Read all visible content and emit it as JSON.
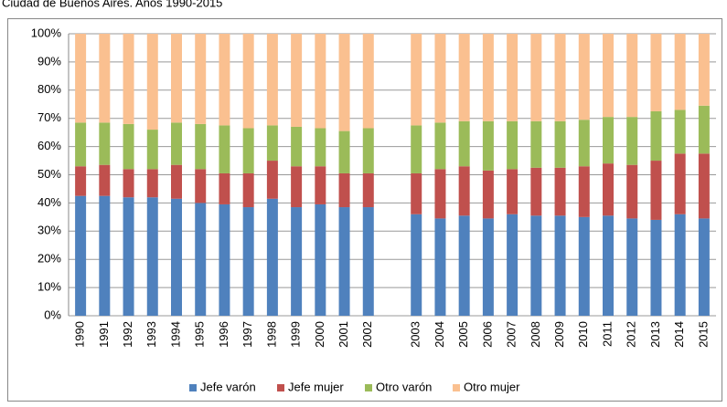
{
  "chart_data": {
    "type": "stacked-bar",
    "title": "Ciudad de Buenos Aires. Años 1990-2015",
    "categories": [
      "1990",
      "1991",
      "1992",
      "1993",
      "1994",
      "1995",
      "1996",
      "1997",
      "1998",
      "1999",
      "2000",
      "2001",
      "2002",
      null,
      "2003",
      "2004",
      "2005",
      "2006",
      "2007",
      "2008",
      "2009",
      "2010",
      "2011",
      "2012",
      "2013",
      "2014",
      "2015"
    ],
    "series": [
      {
        "name": "Jefe varón",
        "color": "#4f81bd",
        "values": [
          42.5,
          42.5,
          42,
          42,
          41.5,
          40,
          39.5,
          38.5,
          41.5,
          38.5,
          39.5,
          38.5,
          38.5,
          null,
          36,
          34.5,
          35.5,
          34.5,
          36,
          35.5,
          35.5,
          35,
          35.5,
          34.5,
          34,
          36,
          34.5
        ]
      },
      {
        "name": "Jefe mujer",
        "color": "#c0504d",
        "values": [
          10.5,
          11,
          10,
          10,
          12,
          12,
          11,
          12,
          13.5,
          14.5,
          13.5,
          12,
          12,
          null,
          14.5,
          17.5,
          17.5,
          17,
          16,
          17,
          17,
          18,
          18.5,
          19,
          21,
          21.5,
          23
        ]
      },
      {
        "name": "Otro varón",
        "color": "#9bbb59",
        "values": [
          15.5,
          15,
          16,
          14,
          15,
          16,
          17,
          16,
          12.5,
          14,
          13.5,
          15,
          16,
          null,
          17,
          16.5,
          16,
          17.5,
          17,
          16.5,
          16.5,
          16.5,
          16.5,
          17,
          17.5,
          15.5,
          17
        ]
      },
      {
        "name": "Otro mujer",
        "color": "#fac090",
        "values": [
          31.5,
          31.5,
          32,
          34,
          31.5,
          32,
          32.5,
          33.5,
          32.5,
          33,
          33.5,
          34.5,
          33.5,
          null,
          32.5,
          31.5,
          31,
          31,
          31,
          31,
          31,
          30.5,
          29.5,
          29.5,
          27.5,
          27,
          25.5
        ]
      }
    ],
    "ylim": [
      0,
      100
    ],
    "yticks": [
      {
        "value": 0,
        "label": "0%"
      },
      {
        "value": 10,
        "label": "10%"
      },
      {
        "value": 20,
        "label": "20%"
      },
      {
        "value": 30,
        "label": "30%"
      },
      {
        "value": 40,
        "label": "40%"
      },
      {
        "value": 50,
        "label": "50%"
      },
      {
        "value": 60,
        "label": "60%"
      },
      {
        "value": 70,
        "label": "70%"
      },
      {
        "value": 80,
        "label": "80%"
      },
      {
        "value": 90,
        "label": "90%"
      },
      {
        "value": 100,
        "label": "100%"
      }
    ],
    "grid": true,
    "legend": "bottom"
  }
}
